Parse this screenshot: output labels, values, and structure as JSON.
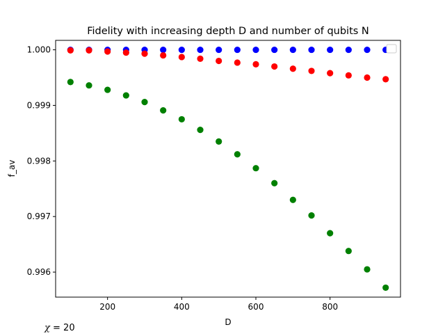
{
  "chart_data": {
    "type": "scatter",
    "title": "Fidelity with increasing depth D and number of qubits N",
    "xlabel": "D",
    "ylabel": "f_av",
    "xlim": [
      60,
      990
    ],
    "ylim": [
      0.99555,
      1.00017
    ],
    "xticks": [
      200,
      400,
      600,
      800
    ],
    "yticks": [
      0.996,
      0.997,
      0.998,
      0.999,
      1.0
    ],
    "ytick_labels": [
      "0.996",
      "0.997",
      "0.998",
      "0.999",
      "1.000"
    ],
    "grid": false,
    "legend": {
      "placement": "top-right",
      "entries": []
    },
    "annotation": {
      "symbol": "χ",
      "text": " = 20"
    },
    "x": [
      100,
      150,
      200,
      250,
      300,
      350,
      400,
      450,
      500,
      550,
      600,
      650,
      700,
      750,
      800,
      850,
      900,
      950
    ],
    "series": [
      {
        "color": "#0000ff",
        "values": [
          1.0,
          1.0,
          1.0,
          1.0,
          1.0,
          1.0,
          1.0,
          1.0,
          1.0,
          1.0,
          1.0,
          1.0,
          1.0,
          1.0,
          1.0,
          1.0,
          1.0,
          1.0
        ]
      },
      {
        "color": "#ff0000",
        "values": [
          0.99999,
          0.99999,
          0.99997,
          0.99995,
          0.99993,
          0.9999,
          0.99987,
          0.99984,
          0.9998,
          0.99977,
          0.99974,
          0.9997,
          0.99966,
          0.99962,
          0.99958,
          0.99954,
          0.9995,
          0.99947
        ]
      },
      {
        "color": "#008000",
        "values": [
          0.99942,
          0.99936,
          0.99928,
          0.99918,
          0.99906,
          0.99891,
          0.99875,
          0.99856,
          0.99835,
          0.99812,
          0.99787,
          0.9976,
          0.9973,
          0.99702,
          0.9967,
          0.99638,
          0.99605,
          0.99572
        ]
      }
    ]
  }
}
